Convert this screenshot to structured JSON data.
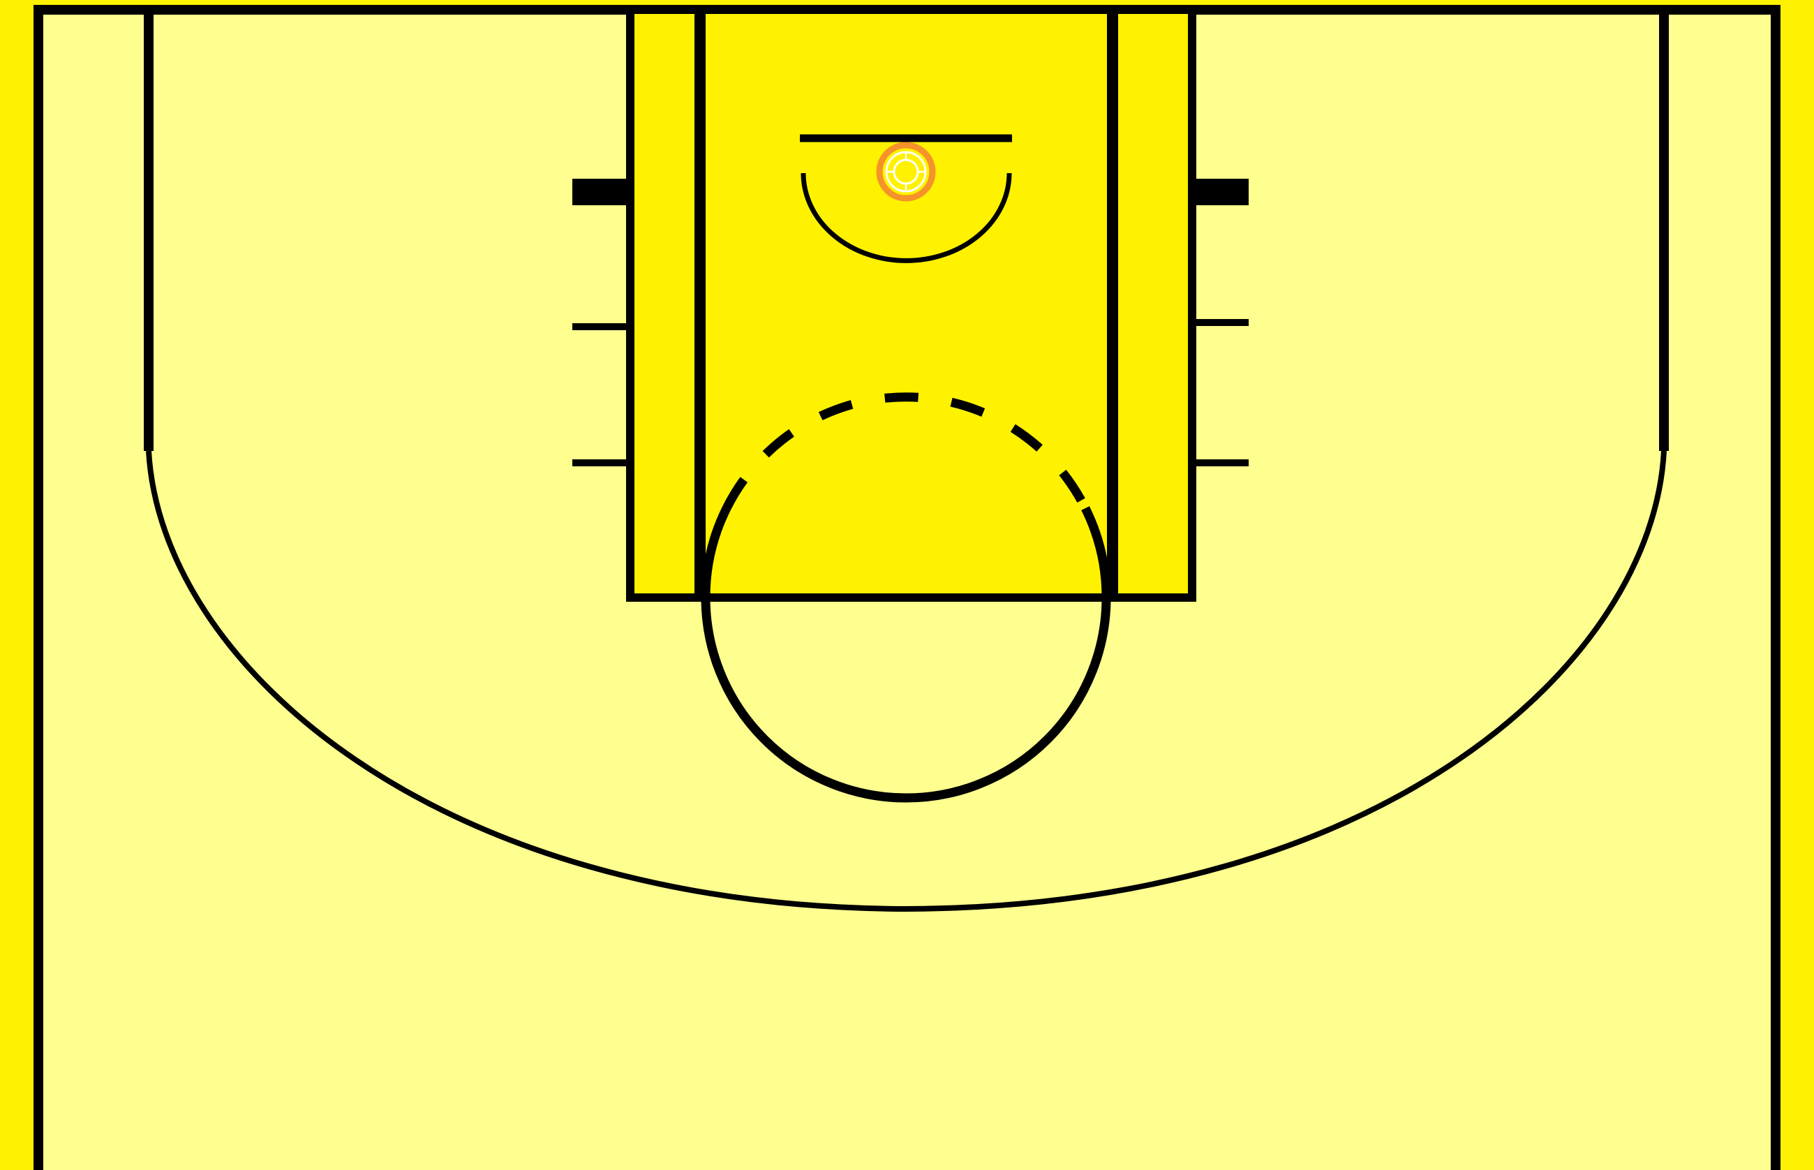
{
  "diagram": {
    "type": "basketball-half-court",
    "colors": {
      "outer_background": "#FFF200",
      "court_floor": "#FFFF8F",
      "paint_lane": "#FFF200",
      "lines": "#000000",
      "rim": "#F5922A",
      "net": "#FFFFFF"
    },
    "elements": [
      "sideline-left",
      "sideline-right",
      "baseline",
      "three-point-line",
      "lane",
      "free-throw-line",
      "free-throw-circle",
      "restricted-area",
      "backboard",
      "rim",
      "lane-hash-marks"
    ]
  }
}
